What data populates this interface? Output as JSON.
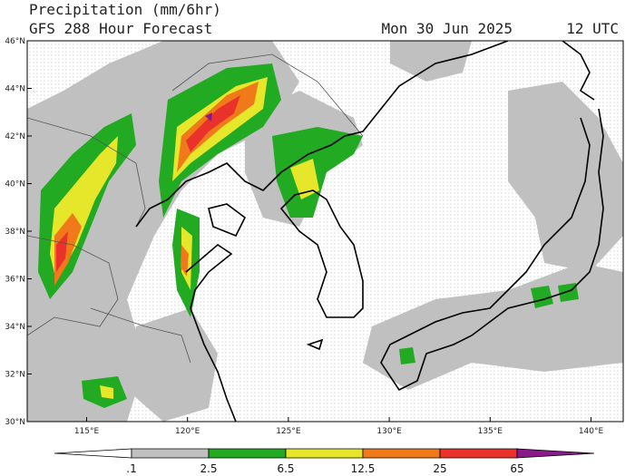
{
  "header": {
    "title": "Precipitation (mm/6hr)",
    "subtitle": "GFS 288 Hour Forecast",
    "date": "Mon 30 Jun 2025",
    "time": "12 UTC"
  },
  "map": {
    "lat_labels": [
      "46°N",
      "44°N",
      "42°N",
      "40°N",
      "38°N",
      "36°N",
      "34°N",
      "32°N",
      "30°N"
    ],
    "lon_labels": [
      "115°E",
      "120°E",
      "125°E",
      "130°E",
      "135°E",
      "140°E"
    ]
  },
  "colorbar": {
    "labels": [
      ".1",
      "2.5",
      "6.5",
      "12.5",
      "25",
      "65"
    ],
    "colors": [
      "#ffffff",
      "#c0c0c0",
      "#22aa22",
      "#e6e62a",
      "#f07a1a",
      "#e8322a",
      "#8a1a8a"
    ]
  }
}
